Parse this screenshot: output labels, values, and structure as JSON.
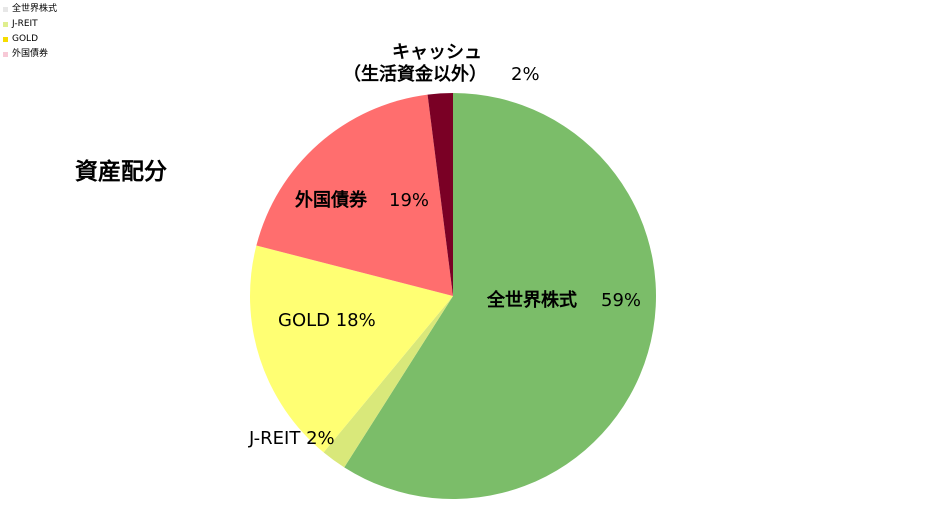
{
  "chart_data": {
    "type": "pie",
    "title": "資産配分",
    "legend_position": "top-left",
    "slices": [
      {
        "name": "全世界株式",
        "value": 59,
        "label": "59%",
        "color": "#7bbd69"
      },
      {
        "name": "J-REIT",
        "value": 2,
        "label": "2%",
        "color": "#d9e87a"
      },
      {
        "name": "GOLD",
        "value": 18,
        "label": "18%",
        "color": "#ffff73"
      },
      {
        "name": "外国債券",
        "value": 19,
        "label": "19%",
        "color": "#ff6e6e"
      },
      {
        "name": "キャッシュ（生活資金以外）",
        "value": 2,
        "label": "2%",
        "color": "#7a0025"
      }
    ],
    "legend": [
      {
        "name": "全世界株式",
        "color": "#e7e7e7"
      },
      {
        "name": "J-REIT",
        "color": "#dfee8e"
      },
      {
        "name": "GOLD",
        "color": "#f6dc00"
      },
      {
        "name": "外国債券",
        "color": "#f7c9d6"
      }
    ],
    "slice_labels": [
      {
        "line1": "全世界株式",
        "line2": "59%"
      },
      {
        "line1": "J-REIT 2%"
      },
      {
        "line1": "GOLD 18%"
      },
      {
        "line1": "外国債券",
        "line2": "19%"
      },
      {
        "line1": "キャッシュ",
        "line2": "（生活資金以外）",
        "line3": "2%"
      }
    ]
  }
}
